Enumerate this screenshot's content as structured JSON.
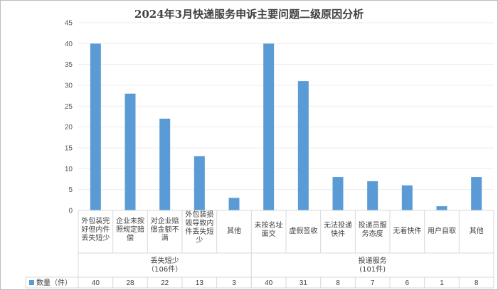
{
  "chart_data": {
    "type": "bar",
    "title": "2024年3月快递服务申诉主要问题二级原因分析",
    "categories": [
      [
        "外包装完",
        "好但内件",
        "丢失短少"
      ],
      [
        "企业未按",
        "照规定赔",
        "偿"
      ],
      [
        "对企业赔",
        "偿金额不",
        "满"
      ],
      [
        "外包装损",
        "毁导致内",
        "件丢失短",
        "少"
      ],
      [
        "其他"
      ],
      [
        "未按名址",
        "面交"
      ],
      [
        "虚假签收"
      ],
      [
        "无法投递",
        "快件"
      ],
      [
        "投递员服",
        "务态度"
      ],
      [
        "无着快件"
      ],
      [
        "用户自取"
      ],
      [
        "其他"
      ]
    ],
    "groups": [
      {
        "label": "丢失短少",
        "sublabel": "（106件）",
        "start": 0,
        "end": 4
      },
      {
        "label": "投递服务",
        "sublabel": "(101件)",
        "start": 5,
        "end": 11
      }
    ],
    "series": [
      {
        "name": "数量（件）",
        "values": [
          40,
          28,
          22,
          13,
          3,
          40,
          31,
          8,
          7,
          6,
          1,
          8
        ]
      }
    ],
    "ylim": [
      0,
      45
    ],
    "yticks": [
      0,
      5,
      10,
      15,
      20,
      25,
      30,
      35,
      40,
      45
    ],
    "grid": true,
    "legend": "data-table-left",
    "colors": {
      "bar": "#5b9bd5",
      "axis": "#d9d9d9",
      "grid": "#ededed"
    }
  }
}
